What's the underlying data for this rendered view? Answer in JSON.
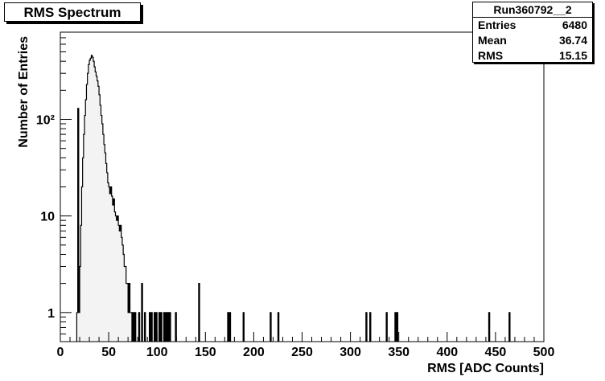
{
  "chart_data": {
    "type": "histogram",
    "title": "RMS Spectrum",
    "xlabel": "RMS [ADC Counts]",
    "ylabel": "Number of Entries",
    "xlim": [
      0,
      500
    ],
    "ylim": [
      0.5,
      800
    ],
    "log_y": true,
    "grid": false,
    "x_ticks": [
      {
        "v": 0,
        "label": "0"
      },
      {
        "v": 50,
        "label": "50"
      },
      {
        "v": 100,
        "label": "100"
      },
      {
        "v": 150,
        "label": "150"
      },
      {
        "v": 200,
        "label": "200"
      },
      {
        "v": 250,
        "label": "250"
      },
      {
        "v": 300,
        "label": "300"
      },
      {
        "v": 350,
        "label": "350"
      },
      {
        "v": 400,
        "label": "400"
      },
      {
        "v": 450,
        "label": "450"
      },
      {
        "v": 500,
        "label": "500"
      }
    ],
    "y_ticks": [
      {
        "v": 1,
        "label": "1"
      },
      {
        "v": 10,
        "label": "10"
      },
      {
        "v": 100,
        "label": "10²"
      }
    ],
    "bin_width": 1,
    "bins": [
      {
        "x": 17,
        "y": 1
      },
      {
        "x": 18,
        "y": 130
      },
      {
        "x": 19,
        "y": 1
      },
      {
        "x": 20,
        "y": 3
      },
      {
        "x": 21,
        "y": 8
      },
      {
        "x": 22,
        "y": 20
      },
      {
        "x": 23,
        "y": 40
      },
      {
        "x": 24,
        "y": 70
      },
      {
        "x": 25,
        "y": 110
      },
      {
        "x": 26,
        "y": 160
      },
      {
        "x": 27,
        "y": 230
      },
      {
        "x": 28,
        "y": 300
      },
      {
        "x": 29,
        "y": 370
      },
      {
        "x": 30,
        "y": 410
      },
      {
        "x": 31,
        "y": 430
      },
      {
        "x": 32,
        "y": 460
      },
      {
        "x": 33,
        "y": 440
      },
      {
        "x": 34,
        "y": 400
      },
      {
        "x": 35,
        "y": 350
      },
      {
        "x": 36,
        "y": 310
      },
      {
        "x": 37,
        "y": 280
      },
      {
        "x": 38,
        "y": 250
      },
      {
        "x": 39,
        "y": 220
      },
      {
        "x": 40,
        "y": 180
      },
      {
        "x": 41,
        "y": 140
      },
      {
        "x": 42,
        "y": 110
      },
      {
        "x": 43,
        "y": 90
      },
      {
        "x": 44,
        "y": 70
      },
      {
        "x": 45,
        "y": 55
      },
      {
        "x": 46,
        "y": 45
      },
      {
        "x": 47,
        "y": 35
      },
      {
        "x": 48,
        "y": 28
      },
      {
        "x": 49,
        "y": 22
      },
      {
        "x": 50,
        "y": 20
      },
      {
        "x": 51,
        "y": 17
      },
      {
        "x": 52,
        "y": 20
      },
      {
        "x": 53,
        "y": 16
      },
      {
        "x": 54,
        "y": 13
      },
      {
        "x": 55,
        "y": 15
      },
      {
        "x": 56,
        "y": 11
      },
      {
        "x": 57,
        "y": 10
      },
      {
        "x": 58,
        "y": 9
      },
      {
        "x": 59,
        "y": 10
      },
      {
        "x": 60,
        "y": 8
      },
      {
        "x": 61,
        "y": 7
      },
      {
        "x": 62,
        "y": 8
      },
      {
        "x": 63,
        "y": 6
      },
      {
        "x": 64,
        "y": 5
      },
      {
        "x": 65,
        "y": 4
      },
      {
        "x": 66,
        "y": 3
      },
      {
        "x": 67,
        "y": 3
      },
      {
        "x": 68,
        "y": 2
      },
      {
        "x": 69,
        "y": 2
      },
      {
        "x": 70,
        "y": 1
      },
      {
        "x": 71,
        "y": 2
      },
      {
        "x": 72,
        "y": 1
      },
      {
        "x": 73,
        "y": 1
      },
      {
        "x": 75,
        "y": 1
      },
      {
        "x": 77,
        "y": 1
      },
      {
        "x": 81,
        "y": 1
      },
      {
        "x": 84,
        "y": 2
      },
      {
        "x": 87,
        "y": 1
      },
      {
        "x": 92,
        "y": 1
      },
      {
        "x": 94,
        "y": 1
      },
      {
        "x": 97,
        "y": 1
      },
      {
        "x": 99,
        "y": 1
      },
      {
        "x": 102,
        "y": 1
      },
      {
        "x": 104,
        "y": 1
      },
      {
        "x": 107,
        "y": 1
      },
      {
        "x": 109,
        "y": 1
      },
      {
        "x": 111,
        "y": 1
      },
      {
        "x": 113,
        "y": 1
      },
      {
        "x": 119,
        "y": 1
      },
      {
        "x": 143,
        "y": 2
      },
      {
        "x": 173,
        "y": 1
      },
      {
        "x": 175,
        "y": 1
      },
      {
        "x": 189,
        "y": 1
      },
      {
        "x": 217,
        "y": 1
      },
      {
        "x": 225,
        "y": 1
      },
      {
        "x": 316,
        "y": 1
      },
      {
        "x": 320,
        "y": 1
      },
      {
        "x": 337,
        "y": 1
      },
      {
        "x": 346,
        "y": 1
      },
      {
        "x": 348,
        "y": 1
      },
      {
        "x": 443,
        "y": 1
      },
      {
        "x": 464,
        "y": 1
      }
    ]
  },
  "stats": {
    "name": "Run360792__2",
    "rows": [
      {
        "label": "Entries",
        "value": "6480"
      },
      {
        "label": "Mean",
        "value": "36.74"
      },
      {
        "label": "RMS",
        "value": "15.15"
      }
    ]
  },
  "colors": {
    "fill": "#f2f2f2",
    "line": "#000000"
  }
}
